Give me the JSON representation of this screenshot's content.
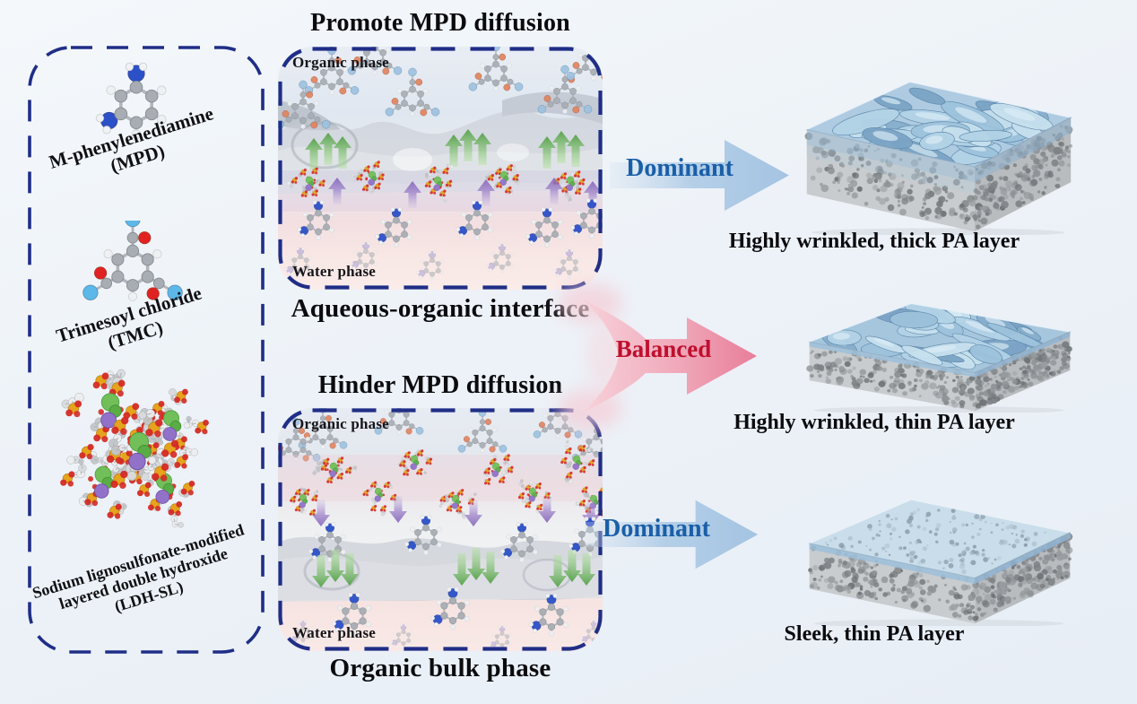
{
  "figure": {
    "reagent_box": {
      "items": [
        {
          "id": "mpd",
          "molecule_icon": "mpd-molecule",
          "label_lines": [
            "M-phenylenediamine",
            "(MPD)"
          ]
        },
        {
          "id": "tmc",
          "molecule_icon": "tmc-molecule",
          "label_lines": [
            "Trimesoyl chloride",
            "(TMC)"
          ]
        },
        {
          "id": "ldhsl",
          "molecule_icon": "ldh-sl-cluster",
          "label_lines": [
            "Sodium lignosulfonate-modified",
            "layered double hydroxide",
            "(LDH-SL)"
          ]
        }
      ]
    },
    "panels": [
      {
        "id": "interface",
        "title": "Promote MPD diffusion",
        "caption": "Aqueous-organic interface",
        "top_label": "Organic phase",
        "bottom_label": "Water phase",
        "diffusion_direction": "up"
      },
      {
        "id": "bulk",
        "title": "Hinder MPD diffusion",
        "caption": "Organic bulk phase",
        "top_label": "Organic phase",
        "bottom_label": "Water phase",
        "diffusion_direction": "down"
      }
    ],
    "outcomes": [
      {
        "arrow_label": "Dominant",
        "arrow_style": "blue",
        "membrane_icon": "membrane-wrinkled-thick",
        "caption": "Highly wrinkled, thick PA layer"
      },
      {
        "arrow_label": "Balanced",
        "arrow_style": "pink-fork",
        "membrane_icon": "membrane-wrinkled-thin",
        "caption": "Highly wrinkled, thin PA layer"
      },
      {
        "arrow_label": "Dominant",
        "arrow_style": "blue",
        "membrane_icon": "membrane-sleek-thin",
        "caption": "Sleek, thin PA layer"
      }
    ],
    "colors": {
      "background": "#edf2f8",
      "dashed_border": "#1f2e87",
      "title_text": "#0b0b0e",
      "dominant_text": "#1a5fa8",
      "balanced_text": "#c00f2d",
      "dominant_arrow": "#b5cfe8",
      "balanced_arrow": "#ee93ab",
      "organic_phase_tint": "#e2e9f2",
      "water_phase_tint": "#f8e7e5",
      "support_grey": "#c2c5c7",
      "pa_layer_blue": "#a9c9e2",
      "mpd_nitrogen_blue": "#2b50c8",
      "mpd_nitrogen_faded": "#a99fd6",
      "tmc_oxygen_red": "#e02222",
      "tmc_oxygen_salmon": "#e0845f",
      "tmc_chlorine_cyan": "#5bb8e8",
      "tmc_chlorine_pale": "#9ec2e0",
      "ldh_sulfur_yellow": "#e6a31e",
      "ldh_oxygen_red": "#d42a24",
      "ldh_chloride_green": "#72bf5a",
      "ldh_sodium_purple": "#9272c8",
      "diffusion_green": "#6cbf5e",
      "diffusion_purple": "#8a68ba"
    },
    "icon_glossary": {
      "mpd-molecule": "ball-and-stick benzene ring with two blue amine groups",
      "tmc-molecule": "ball-and-stick benzene ring with three acyl chloride groups",
      "ldh-sl-cluster": "LDH nanosheet ions with lignosulfonate chains (green Cl, purple Na, yellow S, red O)",
      "green-diffusion-arrow": "green arrow marking MPD diffusion direction",
      "purple-diffusion-arrow": "purple arrow marking LDH-SL migration direction",
      "membrane-wrinkled-thick": "porous support slab topped by thick crumpled polyamide layer",
      "membrane-wrinkled-thin": "porous support slab topped by thin crumpled polyamide layer",
      "membrane-sleek-thin": "porous support slab topped by smooth thin polyamide layer",
      "dominant-arrow": "light blue block arrow pointing right",
      "balanced-arrow": "pink forked ribbon arrow pointing right"
    }
  }
}
